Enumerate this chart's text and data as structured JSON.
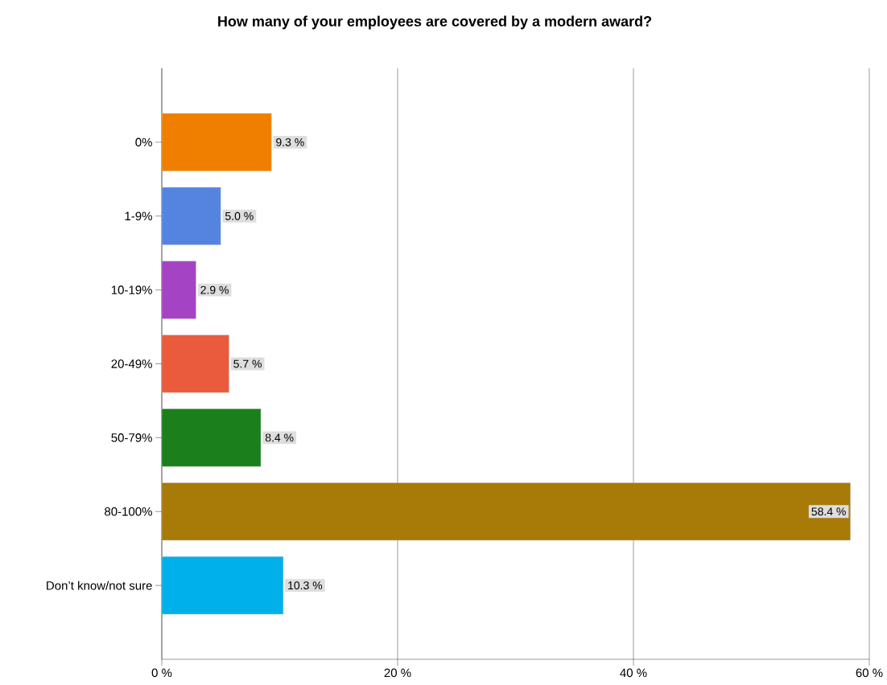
{
  "chart_data": {
    "type": "bar",
    "orientation": "horizontal",
    "title": "How many of your employees are covered by a modern award?",
    "categories": [
      "0%",
      "1-9%",
      "10-19%",
      "20-49%",
      "50-79%",
      "80-100%",
      "Don’t know/not sure"
    ],
    "values": [
      9.3,
      5.0,
      2.9,
      5.7,
      8.4,
      58.4,
      10.3
    ],
    "value_labels": [
      "9.3 %",
      "5.0 %",
      "2.9 %",
      "5.7 %",
      "8.4 %",
      "58.4 %",
      "10.3 %"
    ],
    "colors": [
      "#f07f00",
      "#5584e0",
      "#a443c4",
      "#ea5a3c",
      "#1b7f1b",
      "#a87a08",
      "#00b0ea"
    ],
    "xlim": [
      0,
      60
    ],
    "xticks": [
      {
        "value": 0,
        "label": "0 %"
      },
      {
        "value": 20,
        "label": "20 %"
      },
      {
        "value": 40,
        "label": "40 %"
      },
      {
        "value": 60,
        "label": "60 %"
      }
    ],
    "grid": "x"
  }
}
